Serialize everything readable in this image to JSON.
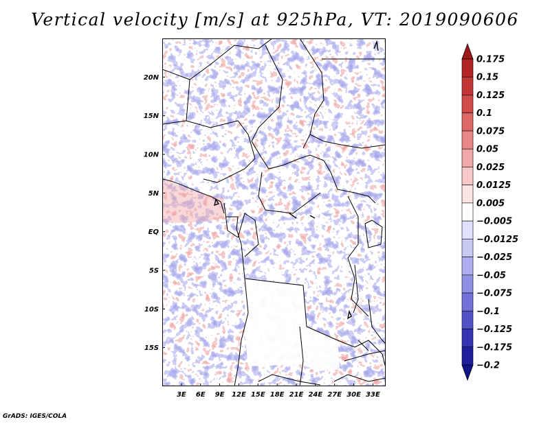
{
  "title": "Vertical velocity [m/s] at 925hPa, VT: 2019090606",
  "footer": "GrADS: IGES/COLA",
  "map": {
    "lon_range": [
      0,
      35
    ],
    "lat_range": [
      -20,
      25
    ],
    "lat_ticks": [
      {
        "value": 20,
        "label": "20N"
      },
      {
        "value": 15,
        "label": "15N"
      },
      {
        "value": 10,
        "label": "10N"
      },
      {
        "value": 5,
        "label": "5N"
      },
      {
        "value": 0,
        "label": "EQ"
      },
      {
        "value": -5,
        "label": "5S"
      },
      {
        "value": -10,
        "label": "10S"
      },
      {
        "value": -15,
        "label": "15S"
      }
    ],
    "lon_ticks": [
      {
        "value": 3,
        "label": "3E"
      },
      {
        "value": 6,
        "label": "6E"
      },
      {
        "value": 9,
        "label": "9E"
      },
      {
        "value": 12,
        "label": "12E"
      },
      {
        "value": 15,
        "label": "15E"
      },
      {
        "value": 18,
        "label": "18E"
      },
      {
        "value": 21,
        "label": "21E"
      },
      {
        "value": 24,
        "label": "24E"
      },
      {
        "value": 27,
        "label": "27E"
      },
      {
        "value": 30,
        "label": "30E"
      },
      {
        "value": 33,
        "label": "33E"
      }
    ]
  },
  "colorbar": {
    "labels": [
      "0.175",
      "0.15",
      "0.125",
      "0.1",
      "0.075",
      "0.05",
      "0.025",
      "0.0125",
      "0.005",
      "−0.005",
      "−0.0125",
      "−0.025",
      "−0.05",
      "−0.075",
      "−0.1",
      "−0.125",
      "−0.175",
      "−0.2"
    ],
    "colors": [
      "#a01a1a",
      "#b22424",
      "#c43535",
      "#d24b4b",
      "#de6868",
      "#e88888",
      "#f0a8a8",
      "#f7c8c8",
      "#fbe3e3",
      "#ffffff",
      "#e1e1fb",
      "#c8c8f5",
      "#aeaeee",
      "#9090e4",
      "#7272d8",
      "#5252c8",
      "#3434b4",
      "#1e1e9c",
      "#14148a"
    ]
  }
}
